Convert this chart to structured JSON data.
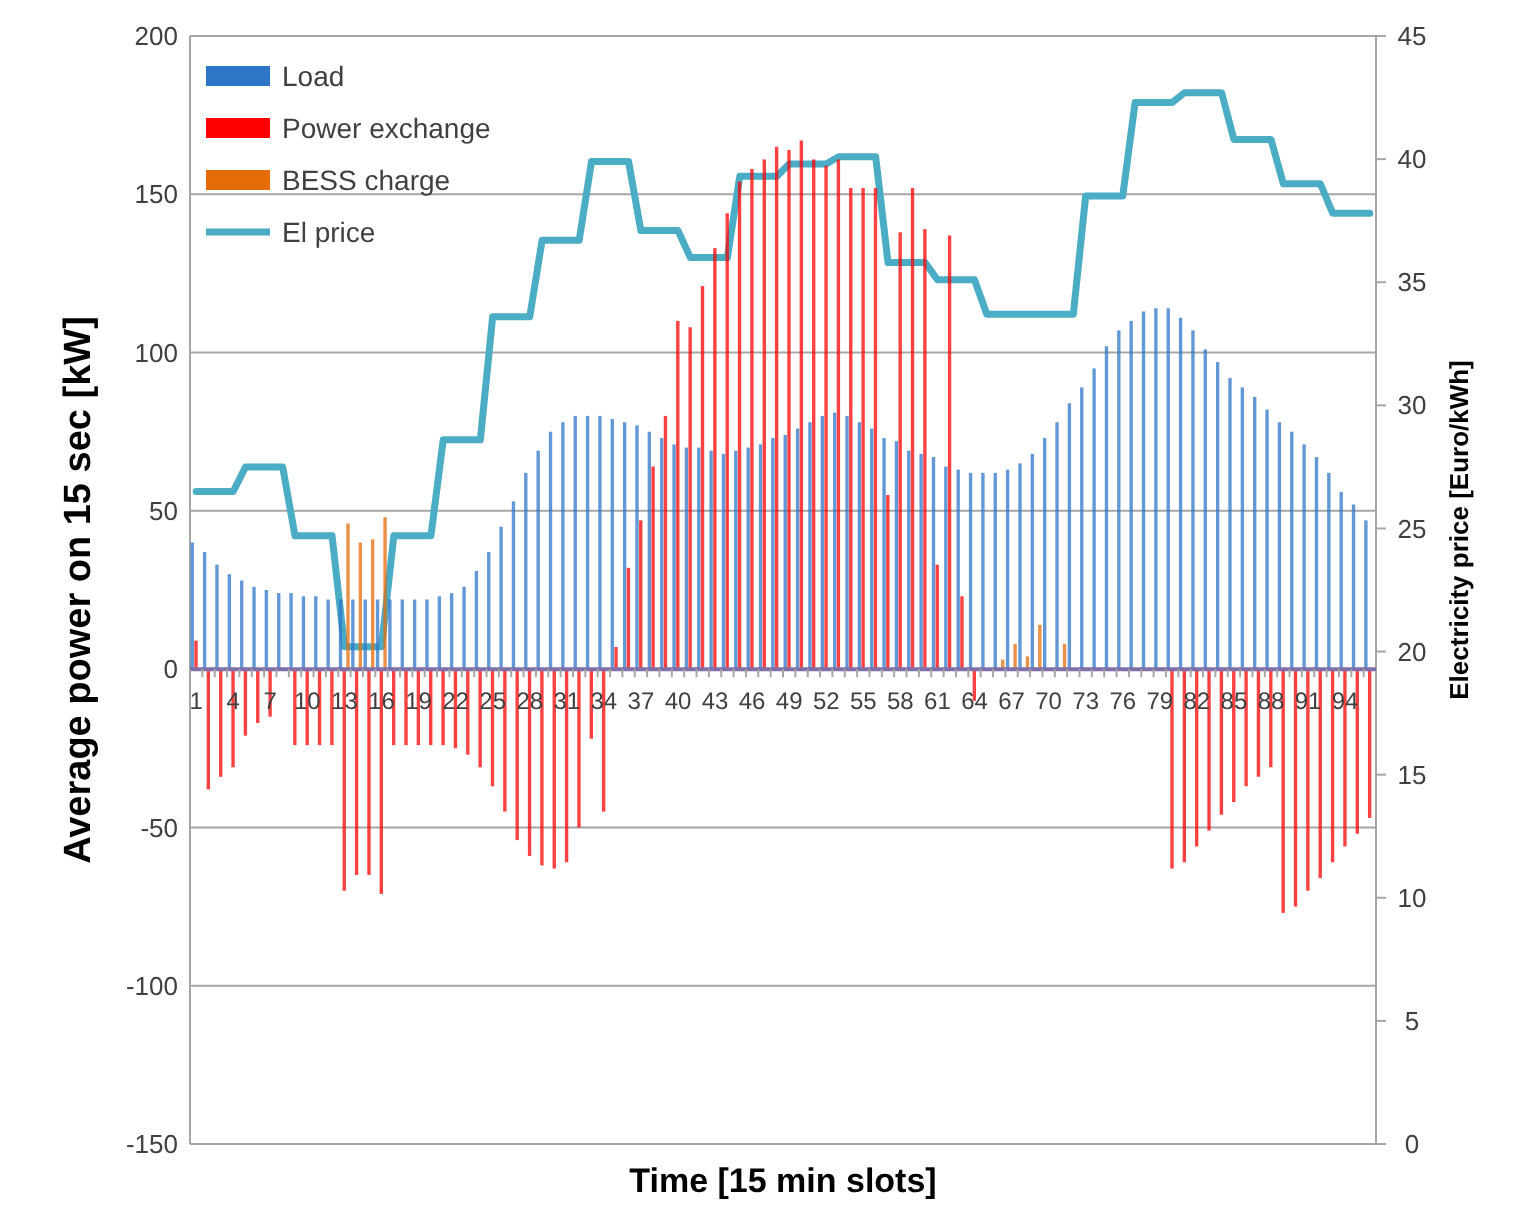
{
  "chart_data": {
    "type": "bar",
    "xlabel": "Time [15 min slots]",
    "ylabel": "Average power on 15 sec [kW]",
    "y2label": "Electricity price [Euro/kWh]",
    "categories": [
      "1",
      null,
      null,
      "4",
      null,
      null,
      "7",
      null,
      null,
      "10",
      null,
      null,
      "13",
      null,
      null,
      "16",
      null,
      null,
      "19",
      null,
      null,
      "22",
      null,
      null,
      "25",
      null,
      null,
      "28",
      null,
      null,
      "31",
      null,
      null,
      "34",
      null,
      null,
      "37",
      null,
      null,
      "40",
      null,
      null,
      "43",
      null,
      null,
      "46",
      null,
      null,
      "49",
      null,
      null,
      "52",
      null,
      null,
      "55",
      null,
      null,
      "58",
      null,
      null,
      "61",
      null,
      null,
      "64",
      null,
      null,
      "67",
      null,
      null,
      "70",
      null,
      null,
      "73",
      null,
      null,
      "76",
      null,
      null,
      "79",
      null,
      null,
      "82",
      null,
      null,
      "85",
      null,
      null,
      "88",
      null,
      null,
      "91",
      null,
      null,
      "94",
      null,
      null
    ],
    "series": [
      {
        "name": "Load",
        "color": "#2e75c8",
        "values": [
          40,
          37,
          33,
          30,
          28,
          26,
          25,
          24,
          24,
          23,
          23,
          22,
          22,
          22,
          22,
          22,
          22,
          22,
          22,
          22,
          23,
          24,
          26,
          31,
          37,
          45,
          53,
          62,
          69,
          75,
          78,
          80,
          80,
          80,
          79,
          78,
          77,
          75,
          73,
          71,
          70,
          70,
          69,
          68,
          69,
          70,
          71,
          73,
          74,
          76,
          78,
          80,
          81,
          80,
          78,
          76,
          73,
          72,
          69,
          68,
          67,
          64,
          63,
          62,
          62,
          62,
          63,
          65,
          68,
          73,
          78,
          84,
          89,
          95,
          102,
          107,
          110,
          113,
          114,
          114,
          111,
          107,
          101,
          97,
          92,
          89,
          86,
          82,
          78,
          75,
          71,
          67,
          62,
          56,
          52,
          47
        ]
      },
      {
        "name": "Power exchange",
        "color": "#ff0000",
        "values": [
          9,
          -38,
          -34,
          -31,
          -21,
          -17,
          -15,
          null,
          -24,
          -24,
          -24,
          -24,
          -70,
          -65,
          -65,
          -71,
          -24,
          -24,
          -24,
          -24,
          -24,
          -25,
          -27,
          -31,
          -37,
          -45,
          -54,
          -59,
          -62,
          -63,
          -61,
          -50,
          -22,
          -45,
          7,
          32,
          47,
          64,
          80,
          110,
          108,
          121,
          133,
          144,
          154,
          158,
          161,
          165,
          164,
          167,
          161,
          159,
          161,
          152,
          152,
          152,
          55,
          138,
          152,
          139,
          33,
          137,
          23,
          -10,
          null,
          null,
          null,
          null,
          null,
          null,
          null,
          null,
          null,
          null,
          null,
          null,
          null,
          null,
          null,
          -63,
          -61,
          -56,
          -51,
          -46,
          -42,
          -37,
          -34,
          -31,
          -77,
          -75,
          -70,
          -66,
          -61,
          -56,
          -52,
          -47
        ]
      },
      {
        "name": "BESS charge",
        "color": "#e36c09",
        "values": [
          null,
          null,
          null,
          null,
          null,
          null,
          null,
          null,
          null,
          null,
          null,
          null,
          46,
          40,
          41,
          48,
          null,
          null,
          null,
          null,
          null,
          null,
          null,
          null,
          null,
          null,
          null,
          null,
          null,
          null,
          null,
          null,
          null,
          null,
          null,
          null,
          null,
          null,
          null,
          null,
          null,
          null,
          null,
          null,
          null,
          null,
          null,
          null,
          null,
          null,
          null,
          null,
          null,
          null,
          null,
          null,
          null,
          null,
          null,
          null,
          null,
          null,
          null,
          null,
          null,
          3,
          8,
          4,
          14,
          null,
          8,
          null,
          null,
          null,
          null,
          null,
          null,
          null,
          null,
          null,
          null,
          null,
          null,
          null,
          null,
          null,
          null,
          null,
          null,
          null,
          null,
          null,
          null,
          null,
          null,
          null
        ]
      },
      {
        "name": "El price",
        "type": "line",
        "axis": "y2",
        "color": "#4bacc6",
        "values": [
          26.5,
          26.5,
          26.5,
          26.5,
          27.5,
          27.5,
          27.5,
          27.5,
          24.7,
          24.7,
          24.7,
          24.7,
          20.2,
          20.2,
          20.2,
          20.2,
          24.7,
          24.7,
          24.7,
          24.7,
          28.6,
          28.6,
          28.6,
          28.6,
          33.6,
          33.6,
          33.6,
          33.6,
          36.7,
          36.7,
          36.7,
          36.7,
          39.9,
          39.9,
          39.9,
          39.9,
          37.1,
          37.1,
          37.1,
          37.1,
          36.0,
          36.0,
          36.0,
          36.0,
          39.3,
          39.3,
          39.3,
          39.3,
          39.8,
          39.8,
          39.8,
          39.8,
          40.1,
          40.1,
          40.1,
          40.1,
          35.8,
          35.8,
          35.8,
          35.8,
          35.1,
          35.1,
          35.1,
          35.1,
          33.7,
          33.7,
          33.7,
          33.7,
          33.7,
          33.7,
          33.7,
          33.7,
          38.5,
          38.5,
          38.5,
          38.5,
          42.3,
          42.3,
          42.3,
          42.3,
          42.7,
          42.7,
          42.7,
          42.7,
          40.8,
          40.8,
          40.8,
          40.8,
          39.0,
          39.0,
          39.0,
          39.0,
          37.8,
          37.8,
          37.8,
          37.8
        ]
      }
    ],
    "ylim": [
      -150,
      200
    ],
    "yticks": [
      -150,
      -100,
      -50,
      0,
      50,
      100,
      150,
      200
    ],
    "y2lim": [
      0,
      45
    ],
    "y2ticks": [
      0,
      5,
      10,
      15,
      20,
      25,
      30,
      35,
      40,
      45
    ],
    "grid": "y",
    "legend": "top left"
  }
}
